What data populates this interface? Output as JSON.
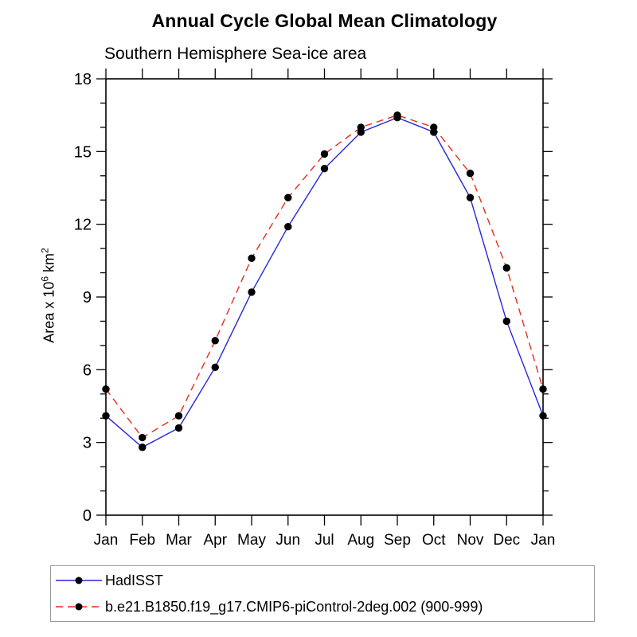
{
  "header": {
    "title": "Annual Cycle Global Mean Climatology",
    "subtitle": "Southern Hemisphere Sea-ice area"
  },
  "chart_data": {
    "type": "line",
    "title": "Annual Cycle Global Mean Climatology",
    "subtitle": "Southern Hemisphere Sea-ice area",
    "x_categories": [
      "Jan",
      "Feb",
      "Mar",
      "Apr",
      "May",
      "Jun",
      "Jul",
      "Aug",
      "Sep",
      "Oct",
      "Nov",
      "Dec",
      "Jan"
    ],
    "series": [
      {
        "name": "HadISST",
        "color": "#2626d8",
        "style": "solid",
        "marker": "filled-black-circle",
        "values": [
          4.1,
          2.8,
          3.6,
          6.1,
          9.2,
          11.9,
          14.3,
          15.8,
          16.4,
          15.8,
          13.1,
          8.0,
          4.1
        ]
      },
      {
        "name": "b.e21.B1850.f19_g17.CMIP6-piControl-2deg.002 (900-999)",
        "color": "#ea2b1c",
        "style": "dashed",
        "marker": "filled-black-circle",
        "values": [
          5.2,
          3.2,
          4.1,
          7.2,
          10.6,
          13.1,
          14.9,
          16.0,
          16.5,
          16.0,
          14.1,
          10.2,
          5.2
        ]
      }
    ],
    "xlabel": "",
    "ylabel": "Area x 10^6 km^2",
    "ylabel_parts": {
      "pre": "Area x 10",
      "sup1": "6",
      "mid": " km",
      "sup2": "2"
    },
    "ylim": [
      0,
      18
    ],
    "ytick_major": [
      0,
      3,
      6,
      9,
      12,
      15,
      18
    ],
    "ytick_minor_step": 1,
    "grid": false,
    "axes_box": true,
    "tick_direction": "out",
    "legend_position": "bottom"
  }
}
